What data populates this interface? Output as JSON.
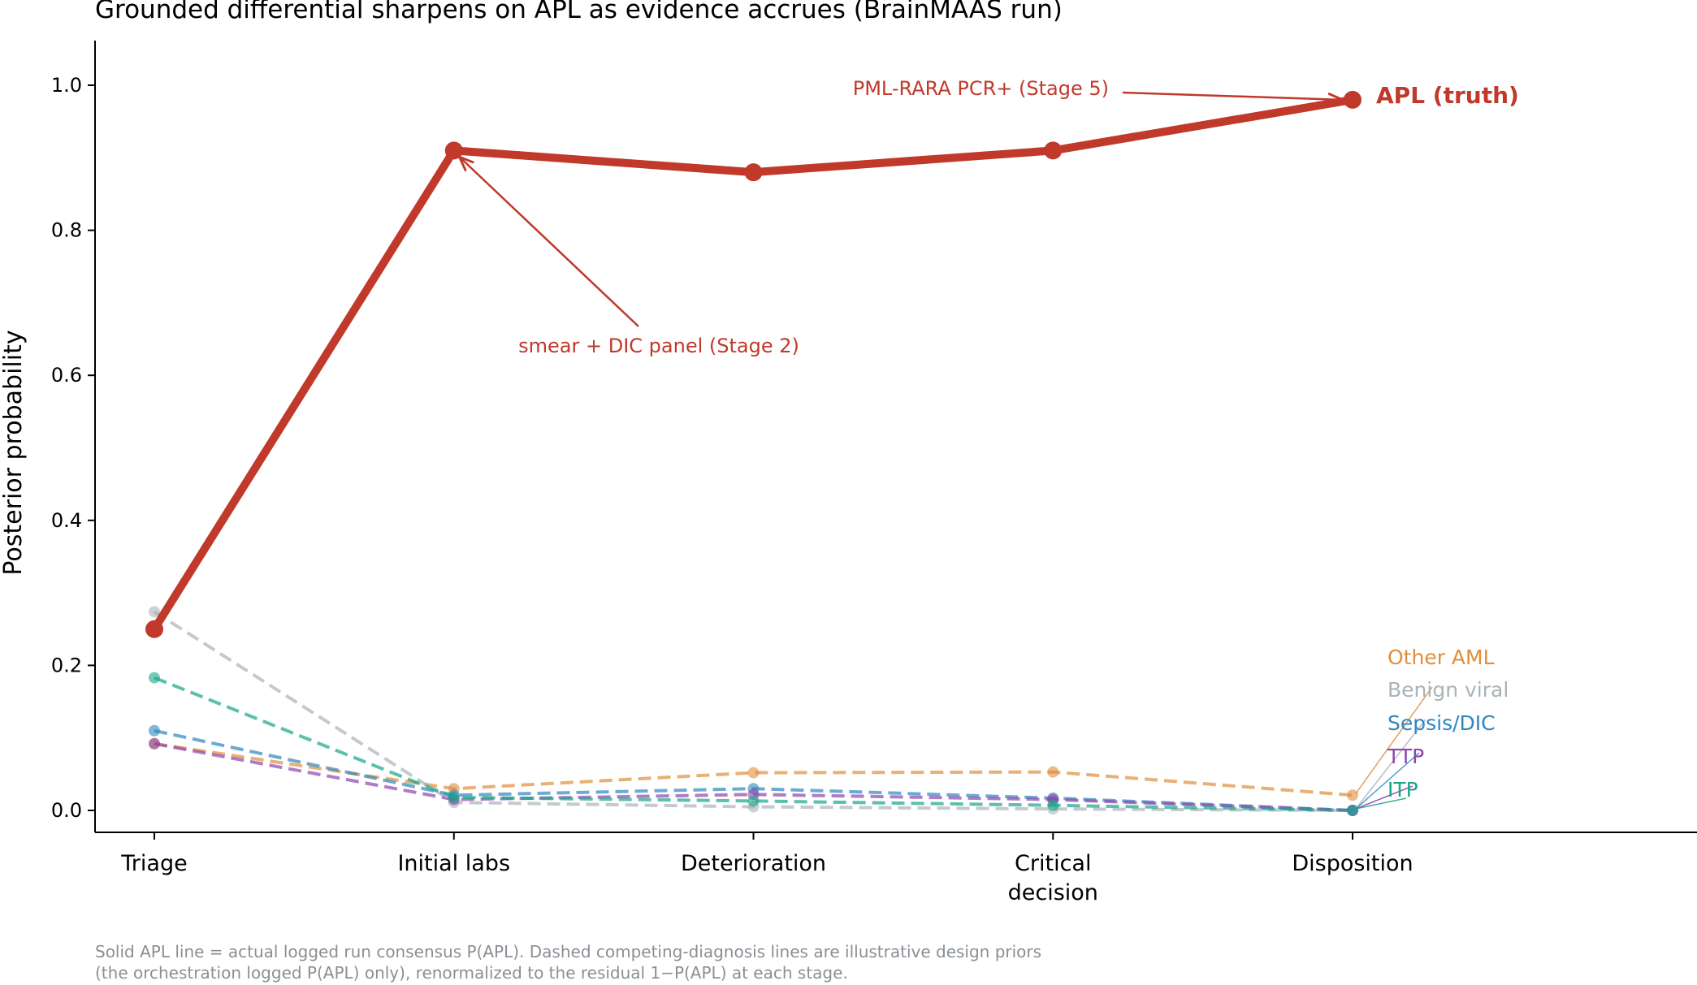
{
  "chart_data": {
    "type": "line",
    "title": "Grounded differential sharpens on APL as evidence accrues (BrainMAAS run)",
    "xlabel": "",
    "ylabel": "Posterior probability",
    "categories": [
      "Triage",
      "Initial labs",
      "Deterioration",
      "Critical decision",
      "Disposition"
    ],
    "category_lines": [
      [
        "Triage"
      ],
      [
        "Initial labs"
      ],
      [
        "Deterioration"
      ],
      [
        "Critical",
        "decision"
      ],
      [
        "Disposition"
      ]
    ],
    "ylim": [
      -0.03,
      1.06
    ],
    "yticks": [
      0.0,
      0.2,
      0.4,
      0.6,
      0.8,
      1.0
    ],
    "ytick_labels": [
      "0.0",
      "0.2",
      "0.4",
      "0.6",
      "0.8",
      "1.0"
    ],
    "grid": false,
    "series": [
      {
        "name": "APL (truth)",
        "values": [
          0.25,
          0.91,
          0.88,
          0.91,
          0.98
        ],
        "color": "#c0392b",
        "style": "solid"
      },
      {
        "name": "Other AML",
        "values": [
          0.092,
          0.03,
          0.052,
          0.053,
          0.021
        ],
        "color": "#e08e3c",
        "style": "dashed"
      },
      {
        "name": "Benign viral",
        "values": [
          0.274,
          0.011,
          0.005,
          0.002,
          0.0
        ],
        "color": "#a9b4b8",
        "style": "dashed"
      },
      {
        "name": "Sepsis/DIC",
        "values": [
          0.11,
          0.021,
          0.03,
          0.017,
          0.0
        ],
        "color": "#2e86c1",
        "style": "dashed"
      },
      {
        "name": "TTP",
        "values": [
          0.092,
          0.015,
          0.022,
          0.015,
          0.0
        ],
        "color": "#8e44ad",
        "style": "dashed"
      },
      {
        "name": "ITP",
        "values": [
          0.183,
          0.018,
          0.013,
          0.007,
          0.0
        ],
        "color": "#17a589",
        "style": "dashed"
      }
    ],
    "annotations": [
      {
        "text": "PML-RARA PCR+ (Stage 5)",
        "color": "#c0392b"
      },
      {
        "text": "smear + DIC panel (Stage 2)",
        "color": "#c0392b"
      }
    ]
  },
  "footnote": {
    "line1": "Solid APL line = actual logged run consensus P(APL). Dashed competing-diagnosis lines are illustrative design priors",
    "line2": "(the orchestration logged P(APL) only), renormalized to the residual 1−P(APL) at each stage."
  }
}
